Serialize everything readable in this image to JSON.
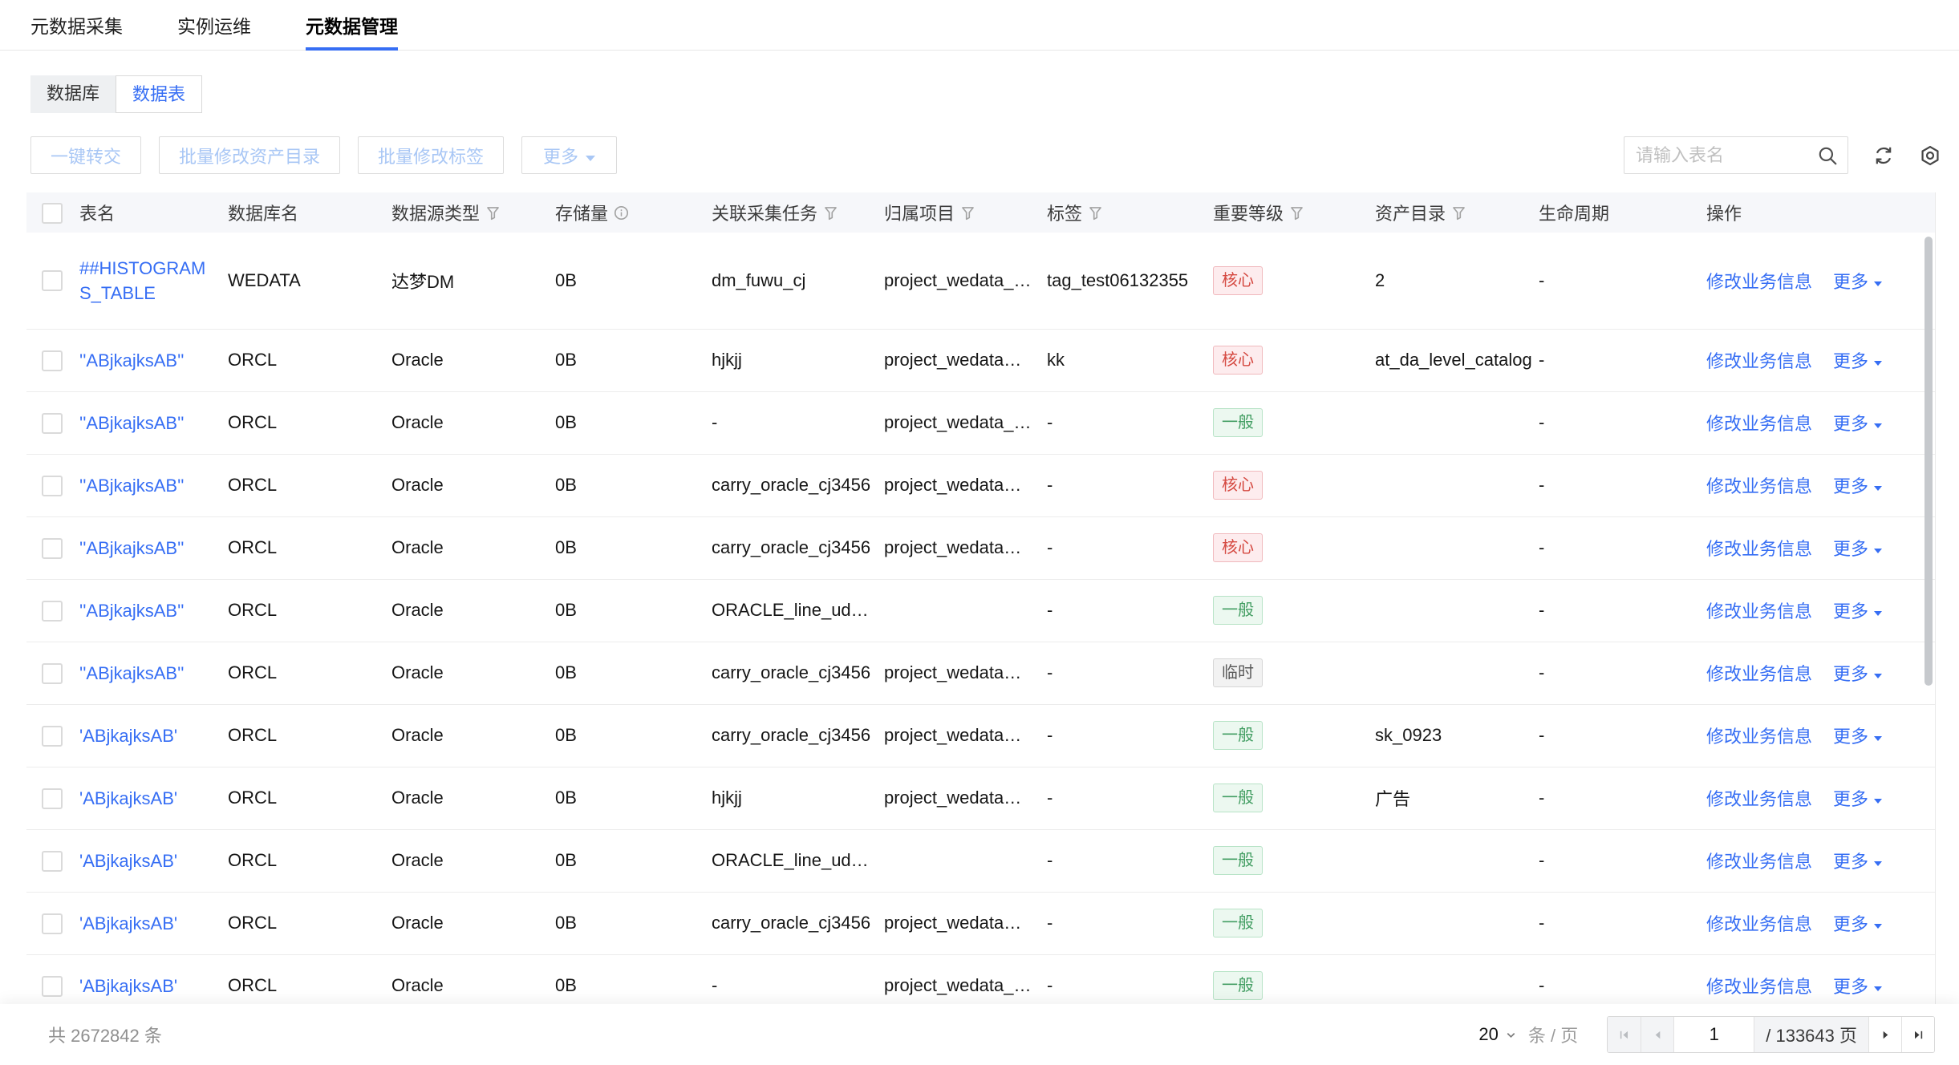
{
  "top_tabs": {
    "items": [
      {
        "label": "元数据采集",
        "active": false
      },
      {
        "label": "实例运维",
        "active": false
      },
      {
        "label": "元数据管理",
        "active": true
      }
    ]
  },
  "view_switch": {
    "options": [
      {
        "label": "数据库",
        "active": false
      },
      {
        "label": "数据表",
        "active": true
      }
    ]
  },
  "toolbar": {
    "transfer_label": "一键转交",
    "batch_catalog_label": "批量修改资产目录",
    "batch_tag_label": "批量修改标签",
    "more_label": "更多",
    "search_placeholder": "请输入表名"
  },
  "table": {
    "columns": [
      {
        "key": "table-name",
        "label": "表名"
      },
      {
        "key": "database-name",
        "label": "数据库名"
      },
      {
        "key": "datasource-type",
        "label": "数据源类型",
        "filter": true
      },
      {
        "key": "storage",
        "label": "存储量",
        "info": true
      },
      {
        "key": "collection-task",
        "label": "关联采集任务",
        "filter": true
      },
      {
        "key": "project",
        "label": "归属项目",
        "filter": true
      },
      {
        "key": "tag",
        "label": "标签",
        "filter": true
      },
      {
        "key": "importance",
        "label": "重要等级",
        "filter": true
      },
      {
        "key": "asset-catalog",
        "label": "资产目录",
        "filter": true
      },
      {
        "key": "lifecycle",
        "label": "生命周期"
      },
      {
        "key": "operations",
        "label": "操作"
      }
    ],
    "actions": {
      "edit": "修改业务信息",
      "more": "更多"
    },
    "rows": [
      {
        "name": "##HISTOGRAMS_TABLE",
        "db": "WEDATA",
        "type": "达梦DM",
        "storage": "0B",
        "task": "dm_fuwu_cj",
        "project": "project_wedata_…",
        "tag": "tag_test06132355",
        "level": "核心",
        "level_type": "core",
        "catalog": "2",
        "lifecycle": "-"
      },
      {
        "name": "''ABjkajksAB''",
        "db": "ORCL",
        "type": "Oracle",
        "storage": "0B",
        "task": "hjkjj",
        "project": "project_wedata…",
        "tag": "kk",
        "level": "核心",
        "level_type": "core",
        "catalog": "at_da_level_catalog",
        "lifecycle": "-"
      },
      {
        "name": "''ABjkajksAB''",
        "db": "ORCL",
        "type": "Oracle",
        "storage": "0B",
        "task": "-",
        "project": "project_wedata_…",
        "tag": "-",
        "level": "一般",
        "level_type": "normal",
        "catalog": "",
        "lifecycle": "-"
      },
      {
        "name": "''ABjkajksAB''",
        "db": "ORCL",
        "type": "Oracle",
        "storage": "0B",
        "task": "carry_oracle_cj3456",
        "project": "project_wedata…",
        "tag": "-",
        "level": "核心",
        "level_type": "core",
        "catalog": "",
        "lifecycle": "-"
      },
      {
        "name": "''ABjkajksAB''",
        "db": "ORCL",
        "type": "Oracle",
        "storage": "0B",
        "task": "carry_oracle_cj3456",
        "project": "project_wedata…",
        "tag": "-",
        "level": "核心",
        "level_type": "core",
        "catalog": "",
        "lifecycle": "-"
      },
      {
        "name": "''ABjkajksAB''",
        "db": "ORCL",
        "type": "Oracle",
        "storage": "0B",
        "task": "ORACLE_line_ud…",
        "project": "",
        "tag": "-",
        "level": "一般",
        "level_type": "normal",
        "catalog": "",
        "lifecycle": "-"
      },
      {
        "name": "''ABjkajksAB''",
        "db": "ORCL",
        "type": "Oracle",
        "storage": "0B",
        "task": "carry_oracle_cj3456",
        "project": "project_wedata…",
        "tag": "-",
        "level": "临时",
        "level_type": "temp",
        "catalog": "",
        "lifecycle": "-"
      },
      {
        "name": "'ABjkajksAB'",
        "db": "ORCL",
        "type": "Oracle",
        "storage": "0B",
        "task": "carry_oracle_cj3456",
        "project": "project_wedata…",
        "tag": "-",
        "level": "一般",
        "level_type": "normal",
        "catalog": "sk_0923",
        "lifecycle": "-"
      },
      {
        "name": "'ABjkajksAB'",
        "db": "ORCL",
        "type": "Oracle",
        "storage": "0B",
        "task": "hjkjj",
        "project": "project_wedata…",
        "tag": "-",
        "level": "一般",
        "level_type": "normal",
        "catalog": "广告",
        "lifecycle": "-"
      },
      {
        "name": "'ABjkajksAB'",
        "db": "ORCL",
        "type": "Oracle",
        "storage": "0B",
        "task": "ORACLE_line_ud…",
        "project": "",
        "tag": "-",
        "level": "一般",
        "level_type": "normal",
        "catalog": "",
        "lifecycle": "-"
      },
      {
        "name": "'ABjkajksAB'",
        "db": "ORCL",
        "type": "Oracle",
        "storage": "0B",
        "task": "carry_oracle_cj3456",
        "project": "project_wedata…",
        "tag": "-",
        "level": "一般",
        "level_type": "normal",
        "catalog": "",
        "lifecycle": "-"
      },
      {
        "name": "'ABjkajksAB'",
        "db": "ORCL",
        "type": "Oracle",
        "storage": "0B",
        "task": "-",
        "project": "project_wedata_…",
        "tag": "-",
        "level": "一般",
        "level_type": "normal",
        "catalog": "",
        "lifecycle": "-"
      }
    ]
  },
  "pagination": {
    "total_text": "共 2672842 条",
    "page_size": "20",
    "per_page_label": "条 / 页",
    "current_page": "1",
    "total_pages_label": "/ 133643 页"
  },
  "colors": {
    "accent_blue": "#366ef4",
    "disabled_button_text": "#a9c7f5",
    "table_header_bg": "#f6f7fa",
    "badge_core": {
      "text": "#d54941",
      "bg": "#fdecee",
      "border": "#f0b8bc"
    },
    "badge_normal": {
      "text": "#439e63",
      "bg": "#ecf8f0",
      "border": "#b7e3c6"
    },
    "badge_temp": {
      "text": "#5a5a5a",
      "bg": "#f2f2f2",
      "border": "#d6d6d6"
    }
  }
}
